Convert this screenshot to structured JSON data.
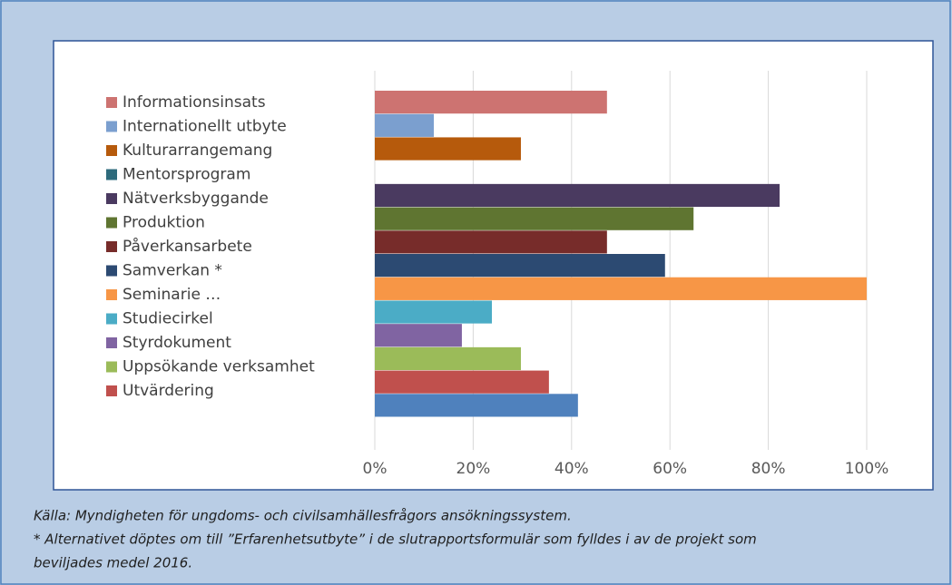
{
  "chart_data": {
    "type": "bar",
    "orientation": "horizontal",
    "categories": [
      "Informationsinsats",
      "Internationellt utbyte",
      "Kulturarrangemang",
      "Mentorsprogram",
      "Nätverksbyggande",
      "Produktion",
      "Påverkansarbete",
      "Samverkan *",
      "Seminarie …",
      "Studiecirkel",
      "Styrdokument",
      "Uppsökande verksamhet",
      "Utvärdering",
      null
    ],
    "values": [
      47.2,
      12.0,
      29.7,
      0,
      82.3,
      64.8,
      47.2,
      59.0,
      100,
      23.8,
      17.7,
      29.7,
      35.4,
      41.3
    ],
    "colors": [
      "#cd7371",
      "#7b9fcf",
      "#b65a0c",
      "#2e6b7c",
      "#4a3a60",
      "#5f7531",
      "#772c2a",
      "#2c4a72",
      "#f79646",
      "#4bacc6",
      "#8064a2",
      "#9bbb59",
      "#c0504d",
      "#4f81bd"
    ],
    "xlim": [
      0,
      100
    ],
    "xticks": [
      {
        "value": 0,
        "label": "0%"
      },
      {
        "value": 20,
        "label": "20%"
      },
      {
        "value": 40,
        "label": "40%"
      },
      {
        "value": 60,
        "label": "60%"
      },
      {
        "value": 80,
        "label": "80%"
      },
      {
        "value": 100,
        "label": "100%"
      }
    ],
    "grid": true,
    "legend": "left"
  },
  "notes": [
    "Källa: Myndigheten för ungdoms- och civilsamhällesfrågors ansökningssystem.",
    "* Alternativet döptes om till ”Erfarenhetsutbyte” i de slutrapportsformulär som fylldes i av de projekt som",
    "beviljades medel 2016."
  ]
}
